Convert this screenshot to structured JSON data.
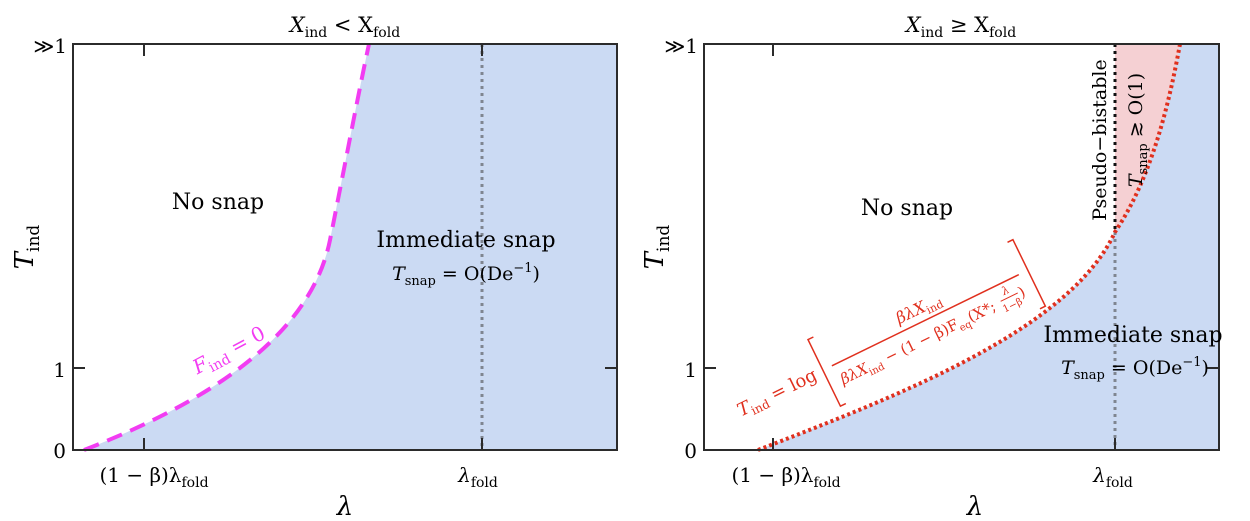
{
  "panels": [
    {
      "title_main": "X",
      "title_sub1": "ind",
      "title_rel": " < X",
      "title_sub2": "fold",
      "y_axis": {
        "main": "T",
        "sub": "ind"
      },
      "x_axis": {
        "main": "λ"
      },
      "y_ticks": {
        "top_prefix": "≫",
        "top": "1",
        "mid": "1",
        "bottom": "0"
      },
      "x_ticks": {
        "left_pre": "(1 − β)λ",
        "left_sub": "fold",
        "right_main": "λ",
        "right_sub": "fold"
      },
      "regions": {
        "no_snap": "No snap",
        "immediate_snap": "Immediate snap",
        "tsnap_main": "T",
        "tsnap_sub": "snap",
        "tsnap_eq": " = O(De",
        "tsnap_sup": "−1",
        "tsnap_close": ")"
      },
      "curve_label": {
        "main": "F",
        "sub": "ind",
        "rest": " = 0"
      },
      "colors": {
        "fill": "#cbdaf3",
        "curve": "#f23cf2",
        "dotted": "#7f8590"
      }
    },
    {
      "title_main": "X",
      "title_sub1": "ind",
      "title_rel": " ≥ X",
      "title_sub2": "fold",
      "y_axis": {
        "main": "T",
        "sub": "ind"
      },
      "x_axis": {
        "main": "λ"
      },
      "y_ticks": {
        "top_prefix": "≫",
        "top": "1",
        "mid": "1",
        "bottom": "0"
      },
      "x_ticks": {
        "left_pre": "(1 − β)λ",
        "left_sub": "fold",
        "right_main": "λ",
        "right_sub": "fold"
      },
      "regions": {
        "no_snap": "No snap",
        "immediate_snap": "Immediate snap",
        "tsnap_main": "T",
        "tsnap_sub": "snap",
        "tsnap_eq": " = O(De",
        "tsnap_sup": "−1",
        "tsnap_close": ")",
        "pseudo_bistable": "Pseudo−bistable",
        "tsnap_big_main": "T",
        "tsnap_big_sub": "snap",
        "tsnap_big_rest": " ≳ O(1)"
      },
      "formula": {
        "lhs_main": "T",
        "lhs_sub": "ind",
        "lhs_eq": " = log",
        "num_main": "βλX",
        "num_sub": "ind",
        "den_a": "βλX",
        "den_a_sub": "ind",
        "den_b": " − (1 − β)F",
        "den_b_sub": "eq",
        "den_c": "(X*; ",
        "frac_num": "λ",
        "frac_den": "1−β",
        "den_close": ")"
      },
      "colors": {
        "fill": "#cbdaf3",
        "pink": "#f5d0d3",
        "curve": "#e0301e",
        "dotted": "#7f8590"
      }
    }
  ]
}
